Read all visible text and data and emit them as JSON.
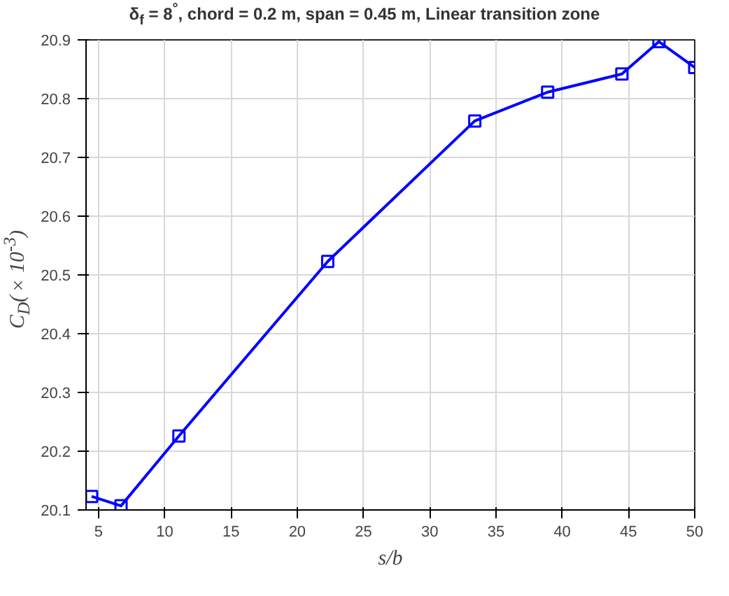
{
  "chart_data": {
    "type": "line",
    "title": "δ$_{f}$ = 8$^{°}$, chord = 0.2 m, span = 0.45 m, Linear transition zone",
    "xlabel": "s/b",
    "ylabel": "C$_{D}$(×10$^{-3}$)",
    "x": [
      4.48,
      6.7,
      11.07,
      22.3,
      33.4,
      38.9,
      44.5,
      47.3,
      50
    ],
    "series": [
      {
        "color": "#0000ff",
        "values": [
          20.123,
          20.107,
          20.226,
          20.523,
          20.762,
          20.811,
          20.842,
          20.897,
          20.853
        ]
      }
    ],
    "xlim": [
      4.06,
      50
    ],
    "ylim": [
      20.1,
      20.9
    ],
    "xticks": [
      5,
      10,
      15,
      20,
      25,
      30,
      35,
      40,
      45,
      50
    ],
    "yticks": [
      20.1,
      20.2,
      20.3,
      20.4,
      20.5,
      20.6,
      20.7,
      20.8,
      20.9
    ],
    "grid": true,
    "marker": "square",
    "line_style": "solid"
  }
}
